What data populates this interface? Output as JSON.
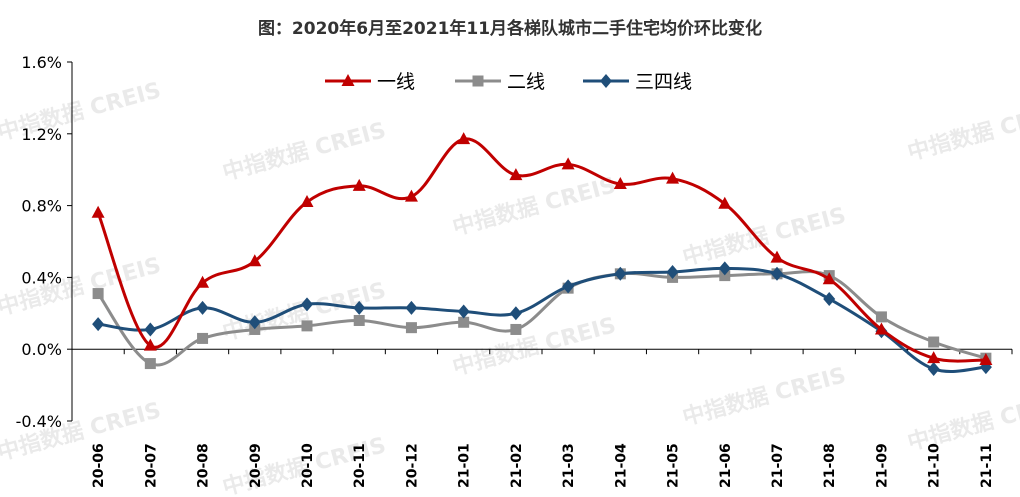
{
  "title": "图：2020年6月至2021年11月各梯队城市二手住宅均价环比变化",
  "watermark": "中指数据 CREIS",
  "colors": {
    "line1": "#c00000",
    "line2": "#8c8c8c",
    "line3": "#1f4e79"
  },
  "chart_data": {
    "type": "line",
    "categories": [
      "20-06",
      "20-07",
      "20-08",
      "20-09",
      "20-10",
      "20-11",
      "20-12",
      "21-01",
      "21-02",
      "21-03",
      "21-04",
      "21-05",
      "21-06",
      "21-07",
      "21-08",
      "21-09",
      "21-10",
      "21-11"
    ],
    "series": [
      {
        "name": "一线",
        "marker": "triangle",
        "values": [
          0.76,
          0.02,
          0.37,
          0.49,
          0.82,
          0.91,
          0.85,
          1.17,
          0.97,
          1.03,
          0.92,
          0.95,
          0.81,
          0.51,
          0.39,
          0.11,
          -0.05,
          -0.06
        ]
      },
      {
        "name": "二线",
        "marker": "square",
        "values": [
          0.31,
          -0.08,
          0.06,
          0.11,
          0.13,
          0.16,
          0.12,
          0.15,
          0.11,
          0.34,
          0.42,
          0.4,
          0.41,
          0.42,
          0.41,
          0.18,
          0.04,
          -0.05
        ]
      },
      {
        "name": "三四线",
        "marker": "diamond",
        "values": [
          0.14,
          0.11,
          0.23,
          0.15,
          0.25,
          0.23,
          0.23,
          0.21,
          0.2,
          0.35,
          0.42,
          0.43,
          0.45,
          0.42,
          0.28,
          0.1,
          -0.11,
          -0.1
        ]
      }
    ],
    "y_ticks": [
      "-0.4%",
      "0.0%",
      "0.4%",
      "0.8%",
      "1.2%",
      "1.6%"
    ],
    "ylim": [
      -0.4,
      1.6
    ],
    "legend_position": "top-center",
    "grid": false
  }
}
